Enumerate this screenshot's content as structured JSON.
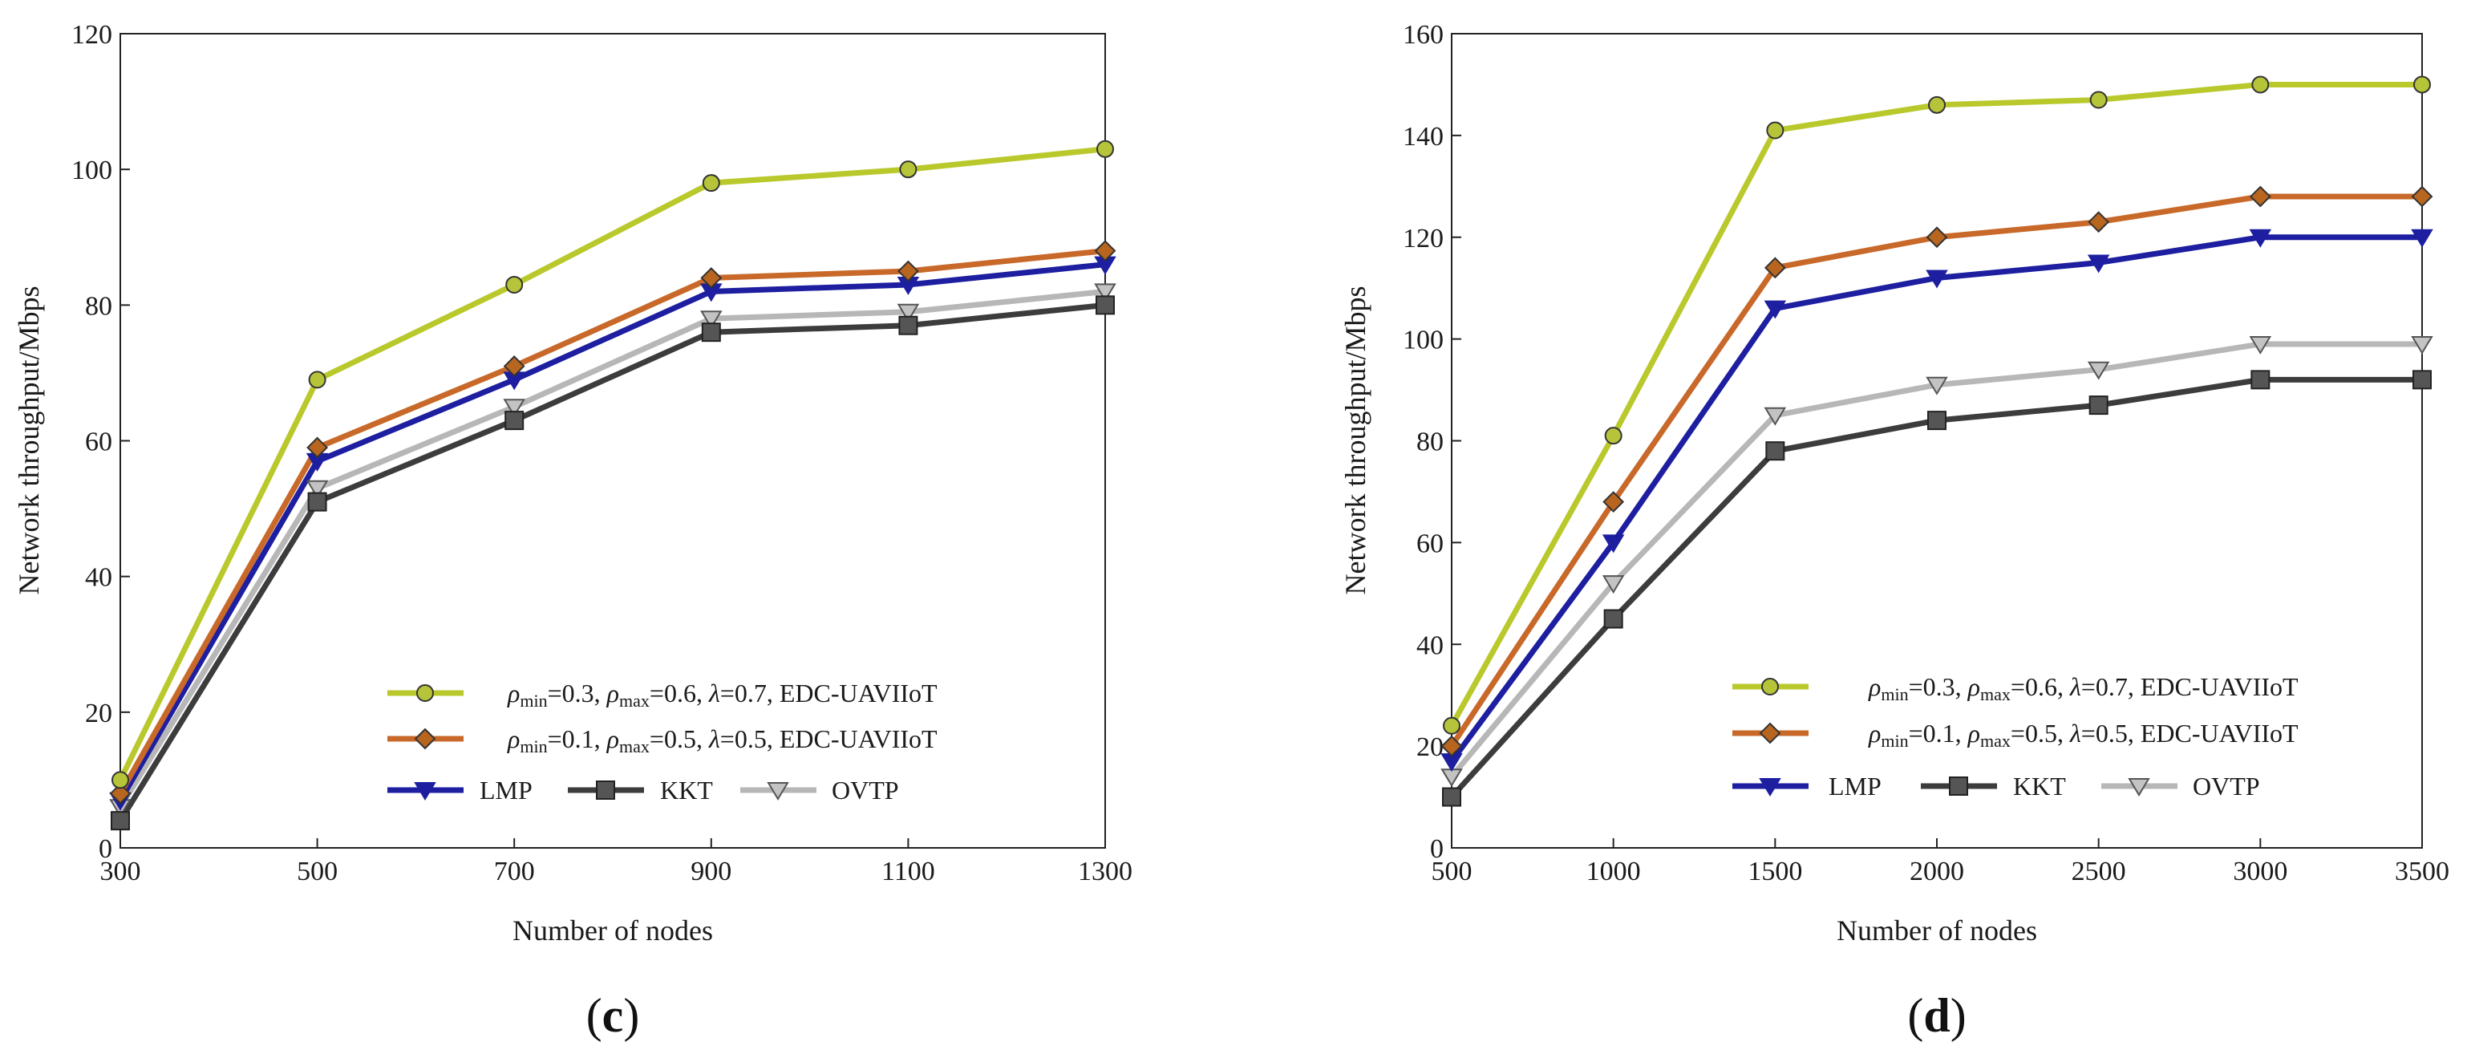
{
  "colors": {
    "s1": "#b9c92c",
    "s1_marker": "#b6c43a",
    "s2": "#c8692a",
    "s2_marker": "#b7651f",
    "lmp": "#1d1ea0",
    "kkt": "#3c3c3c",
    "ovtp": "#b7b7b7",
    "ovtp_marker": "#c3c3c3"
  },
  "chart_data": [
    {
      "panel_label": {
        "open": "(",
        "letter": "c",
        "close": ")"
      },
      "type": "line",
      "title": "",
      "xlabel": "Number of nodes",
      "ylabel": "Network throughput/Mbps",
      "x": [
        300,
        500,
        700,
        900,
        1100,
        1300
      ],
      "xlim": [
        300,
        1300
      ],
      "ylim": [
        0,
        120
      ],
      "xticks": [
        300,
        500,
        700,
        900,
        1100,
        1300
      ],
      "yticks": [
        0,
        20,
        40,
        60,
        80,
        100,
        120
      ],
      "grid": false,
      "legend_position": "lower-right",
      "series": [
        {
          "name": "s1",
          "values": [
            10,
            69,
            83,
            98,
            100,
            103
          ],
          "marker": "circle",
          "legend": {
            "rho1": "ρ",
            "sub1": "min",
            "v1": "=0.3, ",
            "rho2": "ρ",
            "sub2": "max",
            "v2": "=0.6, ",
            "lam": "λ",
            "v3": "=0.7, EDC-UAVIIoT"
          }
        },
        {
          "name": "s2",
          "values": [
            8,
            59,
            71,
            84,
            85,
            88
          ],
          "marker": "diamond",
          "legend": {
            "rho1": "ρ",
            "sub1": "min",
            "v1": "=0.1, ",
            "rho2": "ρ",
            "sub2": "max",
            "v2": "=0.5, ",
            "lam": "λ",
            "v3": "=0.5, EDC-UAVIIoT"
          }
        },
        {
          "name": "LMP",
          "values": [
            7,
            57,
            69,
            82,
            83,
            86
          ],
          "marker": "triangle-down"
        },
        {
          "name": "KKT",
          "values": [
            4,
            51,
            63,
            76,
            77,
            80
          ],
          "marker": "square"
        },
        {
          "name": "OVTP",
          "values": [
            6,
            53,
            65,
            78,
            79,
            82
          ],
          "marker": "triangle-down"
        }
      ]
    },
    {
      "panel_label": {
        "open": "(",
        "letter": "d",
        "close": ")"
      },
      "type": "line",
      "title": "",
      "xlabel": "Number of nodes",
      "ylabel": "Network throughput/Mbps",
      "x": [
        500,
        1000,
        1500,
        2000,
        2500,
        3000,
        3500
      ],
      "xlim": [
        500,
        3500
      ],
      "ylim": [
        0,
        160
      ],
      "xticks": [
        500,
        1000,
        1500,
        2000,
        2500,
        3000,
        3500
      ],
      "yticks": [
        0,
        20,
        40,
        60,
        80,
        100,
        120,
        140,
        160
      ],
      "grid": false,
      "legend_position": "lower-right",
      "series": [
        {
          "name": "s1",
          "values": [
            24,
            81,
            141,
            146,
            147,
            150,
            150
          ],
          "marker": "circle",
          "legend": {
            "rho1": "ρ",
            "sub1": "min",
            "v1": "=0.3, ",
            "rho2": "ρ",
            "sub2": "max",
            "v2": "=0.6, ",
            "lam": "λ",
            "v3": "=0.7, EDC-UAVIIoT"
          }
        },
        {
          "name": "s2",
          "values": [
            20,
            68,
            114,
            120,
            123,
            128,
            128
          ],
          "marker": "diamond",
          "legend": {
            "rho1": "ρ",
            "sub1": "min",
            "v1": "=0.1, ",
            "rho2": "ρ",
            "sub2": "max",
            "v2": "=0.5, ",
            "lam": "λ",
            "v3": "=0.5, EDC-UAVIIoT"
          }
        },
        {
          "name": "LMP",
          "values": [
            17,
            60,
            106,
            112,
            115,
            120,
            120
          ],
          "marker": "triangle-down"
        },
        {
          "name": "KKT",
          "values": [
            10,
            45,
            78,
            84,
            87,
            92,
            92
          ],
          "marker": "square"
        },
        {
          "name": "OVTP",
          "values": [
            14,
            52,
            85,
            91,
            94,
            99,
            99
          ],
          "marker": "triangle-down"
        }
      ]
    }
  ]
}
